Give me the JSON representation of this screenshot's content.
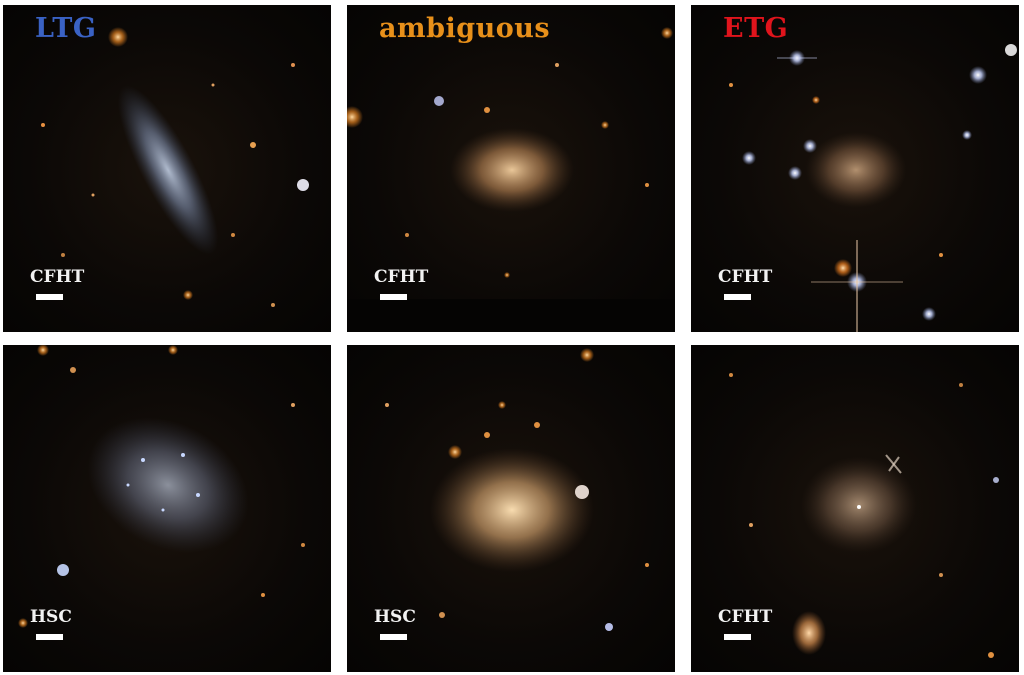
{
  "columns": {
    "ltg": {
      "label": "LTG",
      "color": "#3a62c4"
    },
    "ambiguous": {
      "label": "ambiguous",
      "color": "#e8901a"
    },
    "etg": {
      "label": "ETG",
      "color": "#e0141c"
    }
  },
  "panels": [
    {
      "id": "ltg-top",
      "survey": "CFHT",
      "galaxy": "edge-on bluish disk galaxy"
    },
    {
      "id": "ambiguous-top",
      "survey": "CFHT",
      "galaxy": "elongated orange diffuse galaxy"
    },
    {
      "id": "etg-top",
      "survey": "CFHT",
      "galaxy": "faint orange diffuse galaxy among bright stars"
    },
    {
      "id": "ltg-bottom",
      "survey": "HSC",
      "galaxy": "clumpy bluish irregular galaxy"
    },
    {
      "id": "ambiguous-bottom",
      "survey": "HSC",
      "galaxy": "smooth orange elliptical galaxy"
    },
    {
      "id": "etg-bottom",
      "survey": "CFHT",
      "galaxy": "faint diffuse spheroidal galaxy"
    }
  ]
}
